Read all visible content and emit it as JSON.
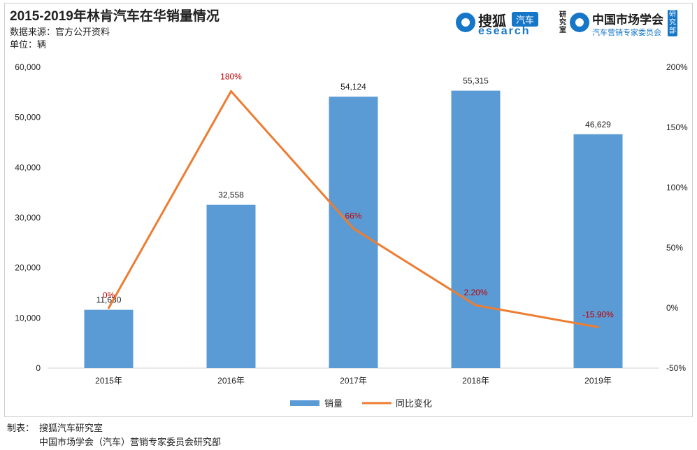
{
  "header": {
    "title": "2015-2019年林肯汽车在华销量情况",
    "source": "数据来源：官方公开资料",
    "unit": "单位：辆"
  },
  "logos": {
    "sohu": {
      "name": "搜狐",
      "tag": "汽车",
      "en": "esearch",
      "side": "研究室"
    },
    "cma": {
      "name": "中国市场学会",
      "en": "汽车营销专家委员会",
      "side": "研究部"
    }
  },
  "footer": {
    "label": "制表：",
    "line1": "搜狐汽车研究室",
    "line2": "中国市场学会（汽车）营销专家委员会研究部"
  },
  "colors": {
    "bar": "#5b9bd5",
    "line": "#ed7d31",
    "pct_label": "#c00000"
  },
  "chart_data": {
    "type": "bar",
    "categories": [
      "2015年",
      "2016年",
      "2017年",
      "2018年",
      "2019年"
    ],
    "series": [
      {
        "name": "销量",
        "type": "bar",
        "axis": "left",
        "values": [
          11630,
          32558,
          54124,
          55315,
          46629
        ],
        "labels": [
          "11,630",
          "32,558",
          "54,124",
          "55,315",
          "46,629"
        ]
      },
      {
        "name": "同比变化",
        "type": "line",
        "axis": "right",
        "values": [
          0,
          180,
          66,
          2.2,
          -15.9
        ],
        "labels": [
          "0%",
          "180%",
          "66%",
          "2.20%",
          "-15.90%"
        ]
      }
    ],
    "y_left": {
      "ylim": [
        0,
        60000
      ],
      "ticks": [
        0,
        10000,
        20000,
        30000,
        40000,
        50000,
        60000
      ],
      "tick_labels": [
        "0",
        "10,000",
        "20,000",
        "30,000",
        "40,000",
        "50,000",
        "60,000"
      ]
    },
    "y_right": {
      "ylim": [
        -50,
        200
      ],
      "ticks": [
        -50,
        0,
        50,
        100,
        150,
        200
      ],
      "tick_labels": [
        "-50%",
        "0%",
        "50%",
        "100%",
        "150%",
        "200%"
      ]
    },
    "grid": false,
    "legend": "bottom"
  }
}
